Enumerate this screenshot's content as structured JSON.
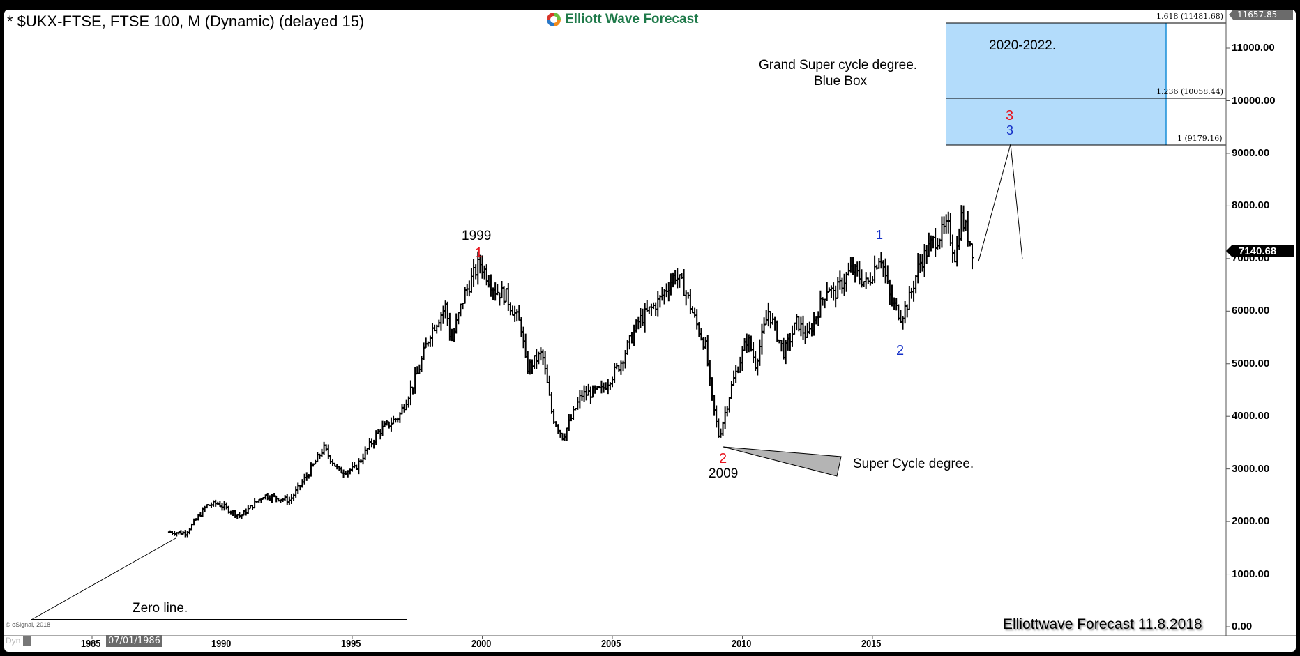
{
  "header": {
    "title": "* $UKX-FTSE, FTSE 100, M (Dynamic) (delayed 15)",
    "logo_text": "Elliott Wave Forecast"
  },
  "colors": {
    "bar": "#000000",
    "blue_box_fill": "#b3dcfb",
    "blue_box_edge": "#1a8fd8",
    "wave_red": "#e8141e",
    "wave_blue": "#1530c8",
    "wedge_fill": "#b4b4b4",
    "last_price_bg": "#000000",
    "high_tag_bg": "#6b6b6b"
  },
  "annotations": {
    "grand_super_cycle": "Grand Super cycle degree.",
    "blue_box": "Blue Box",
    "target_years": "2020-2022.",
    "super_cycle": "Super Cycle  degree.",
    "zero_line": "Zero line.",
    "year_1999": "1999",
    "year_2009": "2009",
    "footer": "Elliottwave Forecast  11.8.2018",
    "copyright": "© eSignal, 2018"
  },
  "waves": {
    "red_1": "1",
    "red_2": "2",
    "red_3": "3",
    "blue_1": "1",
    "blue_2": "2",
    "blue_3": "3"
  },
  "fib_levels": [
    {
      "label": "1.618 (11481.68)",
      "value": 11481.68
    },
    {
      "label": "1.236 (10058.44)",
      "value": 10058.44
    },
    {
      "label": "1 (9179.16)",
      "value": 9179.16
    }
  ],
  "price_tags": {
    "last": "7140.68",
    "high": "11657.85"
  },
  "x_axis": {
    "labels": [
      "1985",
      "1990",
      "1995",
      "2000",
      "2005",
      "2010",
      "2015"
    ],
    "cursor_date": "07/01/1986",
    "dyn_label": "Dyn"
  },
  "y_axis": {
    "labels": [
      "11000.00",
      "10000.00",
      "9000.00",
      "8000.00",
      "7000.00",
      "6000.00",
      "5000.00",
      "4000.00",
      "3000.00",
      "2000.00",
      "1000.00",
      "0.00"
    ]
  },
  "chart_data": {
    "type": "ohlc-bar",
    "title": "* $UKX-FTSE, FTSE 100, M (Dynamic) (delayed 15)",
    "interval": "Monthly",
    "xlabel": "",
    "ylabel": "",
    "x_range": [
      1984,
      2021
    ],
    "ylim": [
      0,
      11657.85
    ],
    "grid": false,
    "series": [
      {
        "name": "FTSE 100 monthly (approx. closes at keypoints)",
        "x": [
          1988.0,
          1988.6,
          1989.4,
          1989.8,
          1990.7,
          1991.6,
          1992.6,
          1993.3,
          1993.9,
          1994.5,
          1995.1,
          1996.0,
          1996.8,
          1997.5,
          1998.0,
          1998.6,
          1998.8,
          1999.3,
          1999.9,
          2000.5,
          2000.9,
          2001.5,
          2001.7,
          2002.3,
          2002.7,
          2003.1,
          2003.8,
          2004.6,
          2005.3,
          2006.0,
          2006.4,
          2006.8,
          2007.4,
          2007.8,
          2008.2,
          2008.6,
          2008.8,
          2009.1,
          2009.6,
          2010.2,
          2010.5,
          2011.0,
          2011.6,
          2012.1,
          2012.5,
          2013.3,
          2013.5,
          2014.2,
          2014.8,
          2015.3,
          2015.7,
          2016.1,
          2016.4,
          2016.8,
          2017.3,
          2017.9,
          2018.2,
          2018.4,
          2018.7,
          2018.85
        ],
        "values": [
          1800,
          1780,
          2300,
          2350,
          2100,
          2500,
          2400,
          2900,
          3400,
          2950,
          3000,
          3700,
          4000,
          4800,
          5600,
          6100,
          5400,
          6300,
          6930,
          6400,
          6300,
          5700,
          4900,
          5200,
          4000,
          3600,
          4400,
          4500,
          5000,
          5800,
          6000,
          6200,
          6700,
          6400,
          5800,
          5300,
          4400,
          3600,
          4600,
          5500,
          5000,
          6000,
          5200,
          5800,
          5500,
          6500,
          6300,
          6800,
          6500,
          7100,
          6200,
          5900,
          6200,
          6900,
          7300,
          7600,
          7000,
          7800,
          7400,
          7140
        ]
      }
    ],
    "fib_targets": [
      {
        "ratio": 1,
        "value": 9179.16
      },
      {
        "ratio": 1.236,
        "value": 10058.44
      },
      {
        "ratio": 1.618,
        "value": 11481.68
      }
    ],
    "last_price": 7140.68,
    "annotations": [
      "1999 wave 1 (~6930)",
      "2009 wave 2 (~3460)",
      "Wave 3 target 2020-2022 (blue box 9179.16-11481.68)",
      "Super Cycle degree",
      "Grand Super cycle degree. Blue Box",
      "Zero line."
    ]
  }
}
